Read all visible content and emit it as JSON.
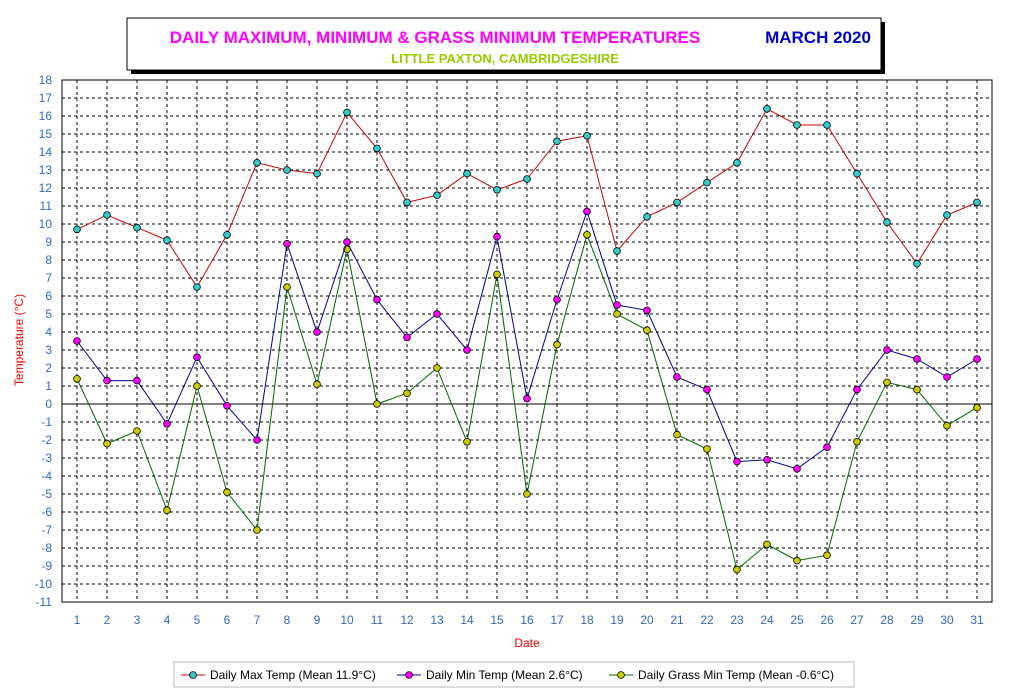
{
  "colors": {
    "title": "#ff00ff",
    "month": "#0000cc",
    "subtitle": "#99cc00",
    "axis_text": "#3366cc",
    "axis_title": "#ff0000",
    "max_line": "#cc0000",
    "max_marker": "#33cccc",
    "min_line": "#000099",
    "min_marker": "#ff00ff",
    "grass_line": "#006600",
    "grass_marker": "#cccc00"
  },
  "chart_data": {
    "type": "line",
    "title": "DAILY MAXIMUM, MINIMUM & GRASS MINIMUM TEMPERATURES",
    "month": "MARCH 2020",
    "subtitle": "LITTLE PAXTON, CAMBRIDGESHIRE",
    "xlabel": "Date",
    "ylabel": "Temperature (°C)",
    "ylim": [
      -11,
      18
    ],
    "grid": true,
    "legend_position": "bottom",
    "x": [
      1,
      2,
      3,
      4,
      5,
      6,
      7,
      8,
      9,
      10,
      11,
      12,
      13,
      14,
      15,
      16,
      17,
      18,
      19,
      20,
      21,
      22,
      23,
      24,
      25,
      26,
      27,
      28,
      29,
      30,
      31
    ],
    "series": [
      {
        "name": "Daily Max Temp (Mean 11.9°C)",
        "values": [
          9.7,
          10.5,
          9.8,
          9.1,
          6.5,
          9.4,
          13.4,
          13.0,
          12.8,
          16.2,
          14.2,
          11.2,
          11.6,
          12.8,
          11.9,
          12.5,
          14.6,
          14.9,
          8.5,
          10.4,
          11.2,
          12.3,
          13.4,
          16.4,
          15.5,
          15.5,
          12.8,
          10.1,
          7.8,
          10.5,
          11.2
        ]
      },
      {
        "name": "Daily Min Temp (Mean 2.6°C)",
        "values": [
          3.5,
          1.3,
          1.3,
          -1.1,
          2.6,
          -0.1,
          -2.0,
          8.9,
          4.0,
          9.0,
          5.8,
          3.7,
          5.0,
          3.0,
          9.3,
          0.3,
          5.8,
          10.7,
          5.5,
          5.2,
          1.5,
          0.8,
          -3.2,
          -3.1,
          -3.6,
          -2.4,
          0.8,
          3.0,
          2.5,
          1.5,
          2.5
        ]
      },
      {
        "name": "Daily Grass Min Temp (Mean -0.6°C)",
        "values": [
          1.4,
          -2.2,
          -1.5,
          -5.9,
          1.0,
          -4.9,
          -7.0,
          6.5,
          1.1,
          8.6,
          0.0,
          0.6,
          2.0,
          -2.1,
          7.2,
          -5.0,
          3.3,
          9.4,
          5.0,
          4.1,
          -1.7,
          -2.5,
          -9.2,
          -7.8,
          -8.7,
          -8.4,
          -2.1,
          1.2,
          0.8,
          -1.2,
          -0.2
        ]
      }
    ]
  }
}
